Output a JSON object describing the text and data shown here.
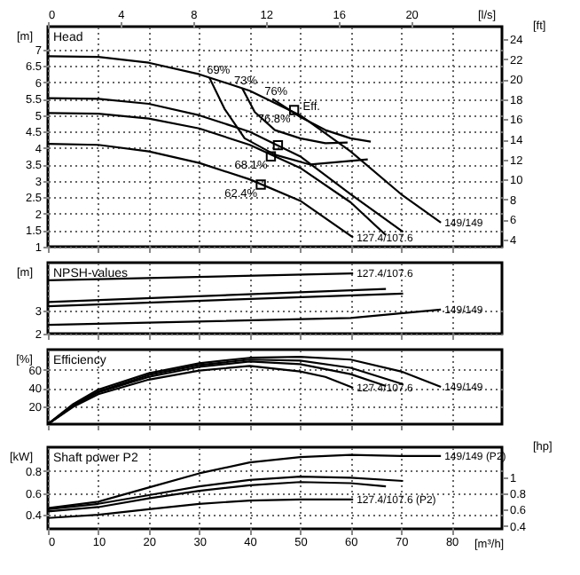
{
  "chart_data": [
    {
      "type": "line",
      "title": "Head",
      "ylabel": "[m]",
      "y2label": "[ft]",
      "x2label": "[l/s]",
      "xlim": [
        0,
        90
      ],
      "xticks": [
        0,
        10,
        20,
        30,
        40,
        50,
        60,
        70,
        80
      ],
      "x2lim": [
        0,
        25
      ],
      "x2ticks": [
        0,
        4,
        8,
        12,
        16,
        20
      ],
      "ylim": [
        1,
        7.7
      ],
      "yticks": [
        1,
        1.5,
        2,
        2.5,
        3,
        3.5,
        4,
        4.5,
        5,
        5.5,
        6,
        6.5,
        7
      ],
      "y2lim": [
        3.28,
        25.26
      ],
      "y2ticks": [
        4,
        6,
        8,
        10,
        12,
        14,
        16,
        18,
        20,
        22,
        24
      ],
      "grid": true,
      "tick_labels": "y",
      "marker": "none",
      "line_style": "solid",
      "series": [
        {
          "name": "149/149",
          "color": "#000000",
          "x": [
            0,
            10,
            20,
            30,
            40,
            50,
            60,
            70,
            77.9
          ],
          "values": [
            6.8,
            6.78,
            6.6,
            6.25,
            5.75,
            5.0,
            3.9,
            2.6,
            1.73
          ]
        },
        {
          "color": "#000000",
          "x": [
            0,
            10,
            20,
            30,
            40,
            50,
            60,
            70.4
          ],
          "values": [
            5.52,
            5.5,
            5.35,
            5.0,
            4.5,
            3.75,
            2.6,
            1.45
          ]
        },
        {
          "color": "#000000",
          "x": [
            0,
            10,
            20,
            30,
            40,
            50,
            60,
            67
          ],
          "values": [
            5.07,
            5.05,
            4.9,
            4.6,
            4.1,
            3.4,
            2.35,
            1.35
          ]
        },
        {
          "name": "127.4/107.6",
          "color": "#000000",
          "x": [
            0,
            10,
            20,
            30,
            40,
            50,
            60.5
          ],
          "values": [
            4.13,
            4.1,
            3.9,
            3.55,
            3.05,
            2.4,
            1.28
          ]
        },
        {
          "color": "#000000",
          "x": [
            32,
            35,
            39,
            45,
            52,
            63.4
          ],
          "values": [
            6.15,
            5.2,
            4.3,
            3.8,
            3.5,
            3.66
          ]
        },
        {
          "color": "#000000",
          "x": [
            38.5,
            41,
            45,
            50,
            55,
            59.4
          ],
          "values": [
            5.83,
            5.1,
            4.55,
            4.3,
            4.15,
            4.17
          ]
        },
        {
          "color": "#000000",
          "x": [
            44.5,
            50,
            55,
            60,
            64
          ],
          "values": [
            5.5,
            4.95,
            4.55,
            4.3,
            4.2
          ]
        },
        {
          "type": "scatter",
          "marker": "square",
          "color": "#000000",
          "x": [
            48.8,
            45.6,
            44.2,
            42.2
          ],
          "values": [
            5.16,
            4.09,
            3.75,
            2.89
          ]
        }
      ],
      "annotations": [
        {
          "text": "69%",
          "x": 33.8,
          "y": 6.38
        },
        {
          "text": "73%",
          "x": 39.2,
          "y": 6.06
        },
        {
          "text": "76%",
          "x": 44.5,
          "y": 5.5
        },
        {
          "text": "Eff.",
          "x": 48.8,
          "y": 5.16
        },
        {
          "text": "76.8%",
          "x": 48.8,
          "y": 5.16
        },
        {
          "text": "68.1%",
          "x": 44.2,
          "y": 3.75
        },
        {
          "text": "62.4%",
          "x": 42.2,
          "y": 2.89
        }
      ]
    },
    {
      "type": "line",
      "title": "NPSH-values",
      "ylabel": "[m]",
      "xlim": [
        0,
        90
      ],
      "xticks": [
        0,
        10,
        20,
        30,
        40,
        50,
        60,
        70,
        80
      ],
      "ylim": [
        2,
        5.1
      ],
      "yticks": [
        2,
        3
      ],
      "grid": true,
      "tick_labels": "y",
      "marker": "none",
      "line_style": "solid",
      "series": [
        {
          "name": "127.4/107.6",
          "color": "#000000",
          "x": [
            0,
            60.5
          ],
          "values": [
            4.33,
            4.63
          ]
        },
        {
          "color": "#000000",
          "x": [
            0,
            67
          ],
          "values": [
            3.38,
            3.95
          ]
        },
        {
          "color": "#000000",
          "x": [
            0,
            70.4
          ],
          "values": [
            3.2,
            3.75
          ]
        },
        {
          "name": "149/149",
          "color": "#000000",
          "x": [
            0,
            60,
            77.9
          ],
          "values": [
            2.38,
            2.68,
            3.05
          ]
        }
      ]
    },
    {
      "type": "line",
      "title": "Efficiency",
      "ylabel": "[%]",
      "xlim": [
        0,
        90
      ],
      "xticks": [
        0,
        10,
        20,
        30,
        40,
        50,
        60,
        70,
        80
      ],
      "ylim": [
        0,
        82
      ],
      "yticks": [
        20,
        40,
        60
      ],
      "grid": true,
      "tick_labels": "y",
      "marker": "none",
      "line_style": "solid",
      "series": [
        {
          "name": "149/149",
          "color": "#000000",
          "x": [
            0,
            5,
            10,
            20,
            30,
            40,
            50,
            60,
            70,
            77.9
          ],
          "values": [
            0,
            22,
            38,
            56,
            67,
            73,
            74,
            71,
            58,
            41
          ]
        },
        {
          "color": "#000000",
          "x": [
            0,
            5,
            10,
            20,
            30,
            40,
            50,
            60,
            70.4
          ],
          "values": [
            0,
            21,
            36,
            54,
            65,
            71,
            70,
            62,
            44
          ]
        },
        {
          "color": "#000000",
          "x": [
            0,
            5,
            10,
            20,
            30,
            40,
            50,
            60,
            67
          ],
          "values": [
            0,
            20,
            35,
            52,
            63,
            69,
            66,
            55,
            42
          ]
        },
        {
          "name": "127.4/107.6",
          "color": "#000000",
          "x": [
            0,
            5,
            10,
            20,
            30,
            40,
            50,
            55,
            60.5
          ],
          "values": [
            0,
            19,
            33,
            49,
            59,
            64,
            58,
            52,
            40
          ]
        }
      ]
    },
    {
      "type": "line",
      "title": "Shaft power P2",
      "ylabel": "[kW]",
      "xlabel": "[m³/h]",
      "y2label": "[hp]",
      "xlim": [
        0,
        90
      ],
      "xticks": [
        0,
        10,
        20,
        30,
        40,
        50,
        60,
        70,
        80
      ],
      "ylim": [
        0.27,
        1.02
      ],
      "yticks": [
        0.4,
        0.6,
        0.8
      ],
      "y2lim": [
        0.362,
        1.368
      ],
      "y2ticks": [
        0.4,
        0.6,
        0.8,
        1
      ],
      "grid": true,
      "marker": "none",
      "line_style": "solid",
      "series": [
        {
          "name": "149/149  (P2)",
          "color": "#000000",
          "x": [
            0,
            10,
            20,
            30,
            40,
            50,
            60,
            70,
            77.9
          ],
          "values": [
            0.46,
            0.52,
            0.65,
            0.78,
            0.88,
            0.93,
            0.95,
            0.94,
            0.94
          ]
        },
        {
          "color": "#000000",
          "x": [
            0,
            10,
            20,
            30,
            40,
            50,
            60,
            70.4
          ],
          "values": [
            0.45,
            0.5,
            0.58,
            0.66,
            0.72,
            0.75,
            0.74,
            0.71
          ]
        },
        {
          "color": "#000000",
          "x": [
            0,
            10,
            20,
            30,
            40,
            50,
            60,
            67
          ],
          "values": [
            0.43,
            0.47,
            0.55,
            0.62,
            0.67,
            0.7,
            0.69,
            0.66
          ]
        },
        {
          "name": "127.4/107.6  (P2)",
          "color": "#000000",
          "x": [
            0,
            10,
            20,
            30,
            40,
            50,
            60.5
          ],
          "values": [
            0.37,
            0.4,
            0.45,
            0.5,
            0.53,
            0.54,
            0.54
          ]
        }
      ]
    }
  ]
}
